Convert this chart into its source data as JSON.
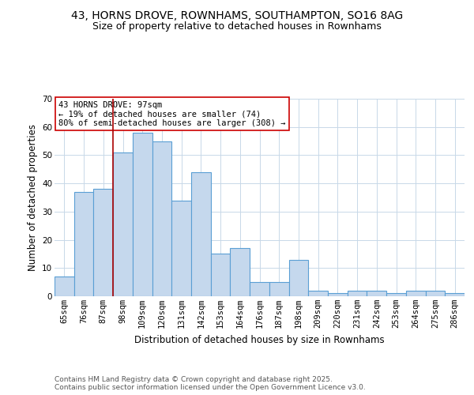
{
  "title_line1": "43, HORNS DROVE, ROWNHAMS, SOUTHAMPTON, SO16 8AG",
  "title_line2": "Size of property relative to detached houses in Rownhams",
  "xlabel": "Distribution of detached houses by size in Rownhams",
  "ylabel": "Number of detached properties",
  "categories": [
    "65sqm",
    "76sqm",
    "87sqm",
    "98sqm",
    "109sqm",
    "120sqm",
    "131sqm",
    "142sqm",
    "153sqm",
    "164sqm",
    "176sqm",
    "187sqm",
    "198sqm",
    "209sqm",
    "220sqm",
    "231sqm",
    "242sqm",
    "253sqm",
    "264sqm",
    "275sqm",
    "286sqm"
  ],
  "values": [
    7,
    37,
    38,
    51,
    58,
    55,
    34,
    44,
    15,
    17,
    5,
    5,
    13,
    2,
    1,
    2,
    2,
    1,
    2,
    2,
    1
  ],
  "bar_color": "#c5d8ed",
  "bar_edge_color": "#5a9fd4",
  "background_color": "#ffffff",
  "grid_color": "#c8d8e8",
  "vline_color": "#aa0000",
  "annotation_text": "43 HORNS DROVE: 97sqm\n← 19% of detached houses are smaller (74)\n80% of semi-detached houses are larger (308) →",
  "annotation_box_color": "#ffffff",
  "annotation_edge_color": "#cc0000",
  "ylim": [
    0,
    70
  ],
  "yticks": [
    0,
    10,
    20,
    30,
    40,
    50,
    60,
    70
  ],
  "footer_text": "Contains HM Land Registry data © Crown copyright and database right 2025.\nContains public sector information licensed under the Open Government Licence v3.0.",
  "title_fontsize": 10,
  "subtitle_fontsize": 9,
  "axis_label_fontsize": 8.5,
  "tick_fontsize": 7.5,
  "annotation_fontsize": 7.5,
  "footer_fontsize": 6.5
}
